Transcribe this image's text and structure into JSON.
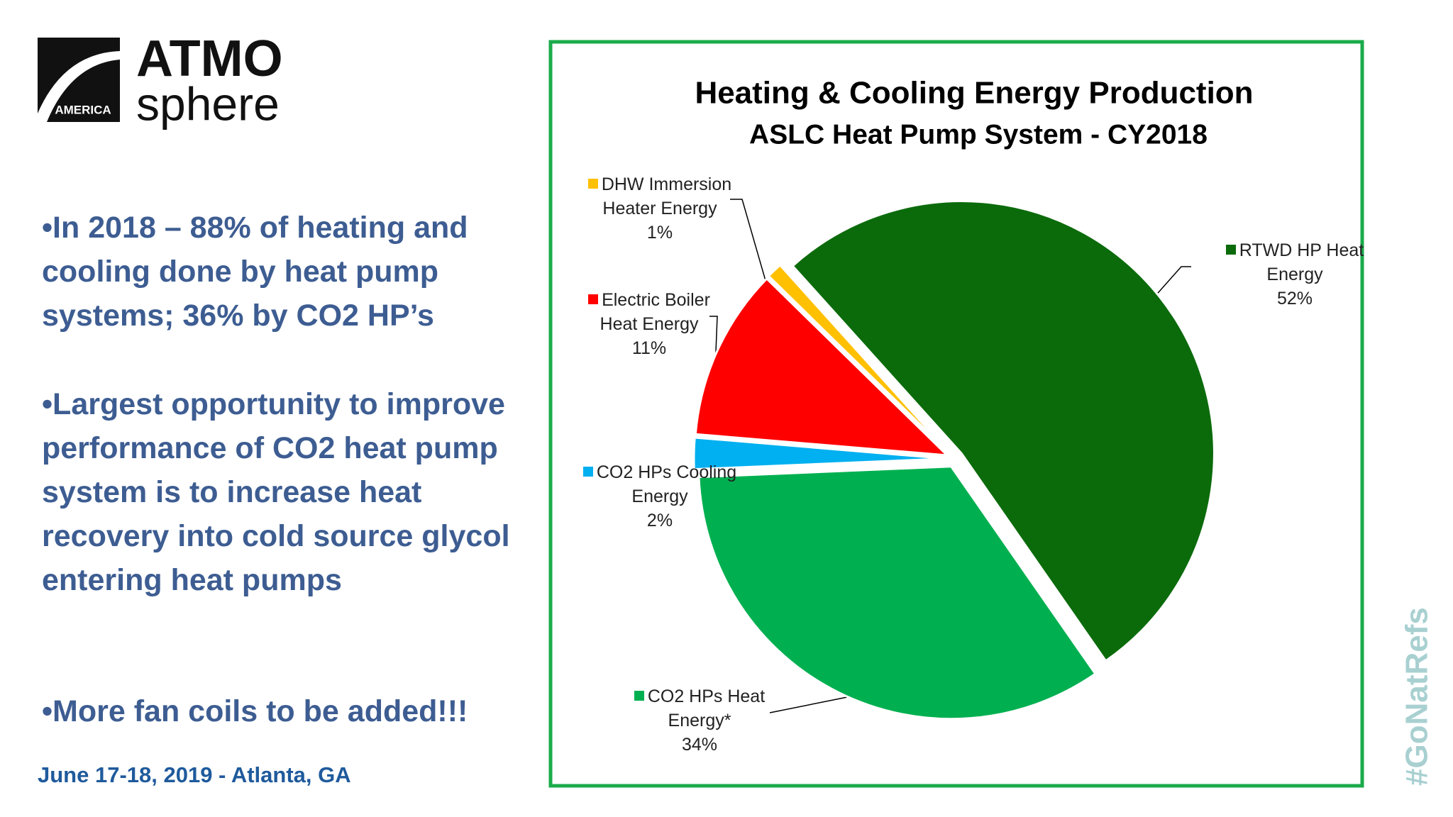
{
  "logo": {
    "badge": "AMERICA",
    "top": "ATMO",
    "bottom": "sphere"
  },
  "bullets": [
    "•In 2018 – 88% of heating and cooling done by heat pump systems; 36% by CO2 HP’s",
    "•Largest opportunity to improve performance of CO2 heat pump system is to increase heat recovery into cold source glycol entering heat pumps",
    "•More fan coils to be added!!!"
  ],
  "footer": "June 17-18, 2019 - Atlanta, GA",
  "hashtag": "#GoNatRefs",
  "chart_data": {
    "type": "pie",
    "title": "Heating & Cooling Energy Production",
    "subtitle": "ASLC Heat Pump System - CY2018",
    "categories": [
      "RTWD HP Heat Energy",
      "CO2 HPs Heat Energy*",
      "CO2 HPs Cooling Energy",
      "Electric Boiler Heat Energy",
      "DHW Immersion Heater Energy"
    ],
    "values": [
      52,
      34,
      2,
      11,
      1
    ],
    "value_labels": [
      "52%",
      "34%",
      "2%",
      "11%",
      "1%"
    ],
    "colors": [
      "#0b6b0b",
      "#00b050",
      "#00b0f0",
      "#ff0000",
      "#ffc000"
    ]
  }
}
